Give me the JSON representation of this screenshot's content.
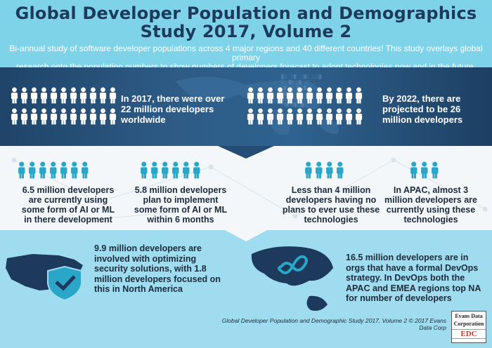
{
  "header": {
    "title_line1": "Global Developer Population and Demographics",
    "title_line2": "Study 2017, Volume 2",
    "subtitle_line1": "Bi-annual study of software developer populations across 4 major regions and 40 different countries! This study overlays global primary",
    "subtitle_line2": "research onto the population numbers to show numbers of developers forecast to adopt technologies now and in the future."
  },
  "band": {
    "stat_2017": [
      "In 2017, there were over",
      "22 million developers",
      "worldwide"
    ],
    "stat_2022": [
      "By 2022, there are",
      "projected to be 26",
      "million developers"
    ]
  },
  "cards": [
    {
      "lines": [
        "6.5 million developers",
        "are currently using",
        "some form of AI or ML",
        "in there development"
      ],
      "icon_count": 7
    },
    {
      "lines": [
        "5.8 million developers",
        "plan to implement",
        "some form of AI or ML",
        "within 6 months"
      ],
      "icon_count": 6
    },
    {
      "lines": [
        "Less than 4 million",
        "developers having no",
        "plans to ever use these",
        "technologies"
      ],
      "icon_count": 4
    },
    {
      "lines": [
        "In APAC, almost 3",
        "million developers are",
        "currently using these",
        "technologies"
      ],
      "icon_count": 3
    }
  ],
  "bottom": {
    "security": [
      "9.9 million developers are",
      "involved with optimizing",
      "security solutions, with 1.8",
      "million developers focused on",
      "this in North America"
    ],
    "devops": [
      "16.5 million developers are in",
      "orgs that have a formal DevOps",
      "strategy.  In DevOps both the",
      "APAC and EMEA regions top NA",
      "for number of developers"
    ]
  },
  "footer": {
    "citation": "Global Developer Population and Demographic Study 2017, Volume 2 © 2017 Evans Data Corp",
    "logo_line1": "Evans Data",
    "logo_line2": "Corporation",
    "logo_mark": "EDC"
  },
  "colors": {
    "navy": "#1d3a5c",
    "accent": "#1d8fb8",
    "icon_white": "#ffffff",
    "icon_teal": "#2aa6c9"
  }
}
